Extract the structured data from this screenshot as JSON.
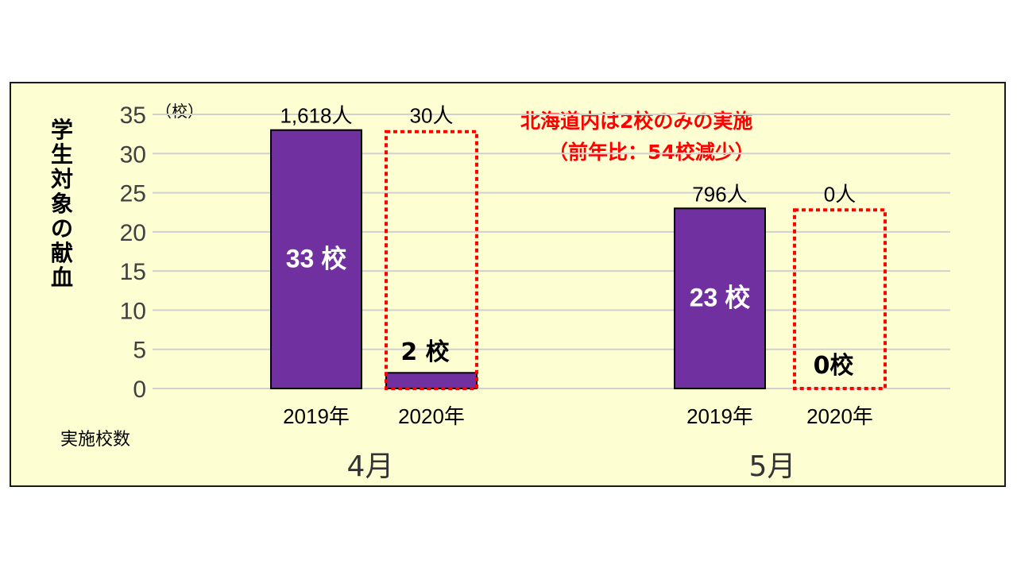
{
  "chart_data": {
    "type": "bar",
    "ylabel": "学生対象の献血",
    "y_unit": "（校）",
    "x_header": "実施校数",
    "ylim": [
      0,
      35
    ],
    "yticks": [
      0,
      5,
      10,
      15,
      20,
      25,
      30,
      35
    ],
    "grid": true,
    "groups": [
      {
        "label": "4月",
        "bars": [
          {
            "year": "2019年",
            "value": 33,
            "value_label": "33 校",
            "people": "1,618人"
          },
          {
            "year": "2020年",
            "value": 2,
            "value_label": "2 校",
            "people": "30人"
          }
        ]
      },
      {
        "label": "5月",
        "bars": [
          {
            "year": "2019年",
            "value": 23,
            "value_label": "23 校",
            "people": "796人"
          },
          {
            "year": "2020年",
            "value": 0,
            "value_label": "0校",
            "people": "0人"
          }
        ]
      }
    ],
    "annotation": {
      "line1": "北海道内は2校のみの実施",
      "line2": "（前年比：54校減少）"
    },
    "colors": {
      "bar": "#7030a0",
      "dashed_box": "#ff0000",
      "panel": "#fefed3",
      "grid": "#d0d0d0",
      "note": "#ff0000"
    }
  }
}
